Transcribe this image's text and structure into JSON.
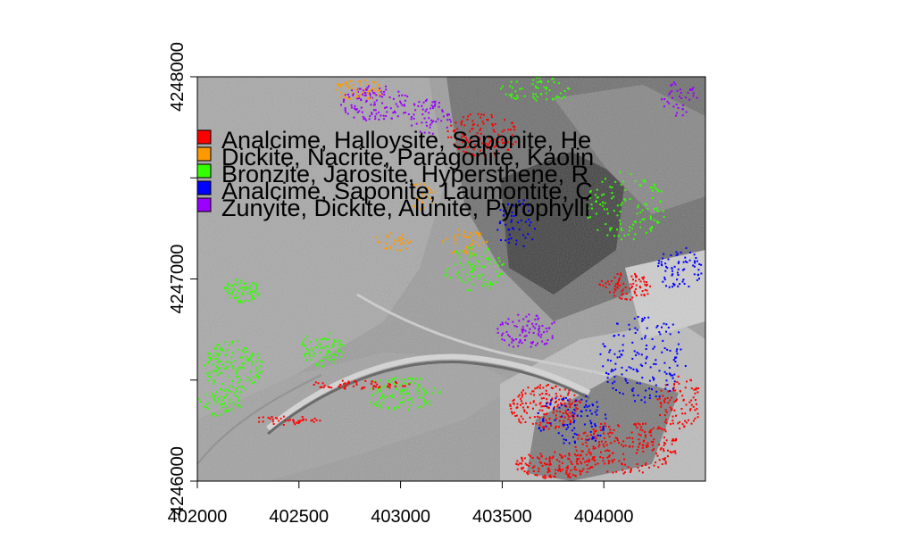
{
  "chart_data": {
    "type": "map",
    "x_axis": {
      "ticks": [
        402000,
        402500,
        403000,
        403500,
        404000
      ],
      "range": [
        402000,
        404500
      ]
    },
    "y_axis": {
      "ticks": [
        4246000,
        4247000,
        4248000
      ],
      "range": [
        4246000,
        4248000
      ]
    },
    "basemap": "grayscale hillshade",
    "grid": false,
    "legend": {
      "placement": "top-left",
      "entries": [
        {
          "label": "Analcime, Halloysite, Saponite, He",
          "color": "#ff0000"
        },
        {
          "label": "Dickite, Nacrite, Paragonite, Kaolin",
          "color": "#ff9900"
        },
        {
          "label": "Bronzite, Jarosite, Hypersthene, R",
          "color": "#33ff00"
        },
        {
          "label": "Analcime, Saponite, Laumontite, C",
          "color": "#0000ff"
        },
        {
          "label": "Zunyite, Dickite, Alunite, Pyrophylli",
          "color": "#9900ff"
        }
      ]
    }
  }
}
